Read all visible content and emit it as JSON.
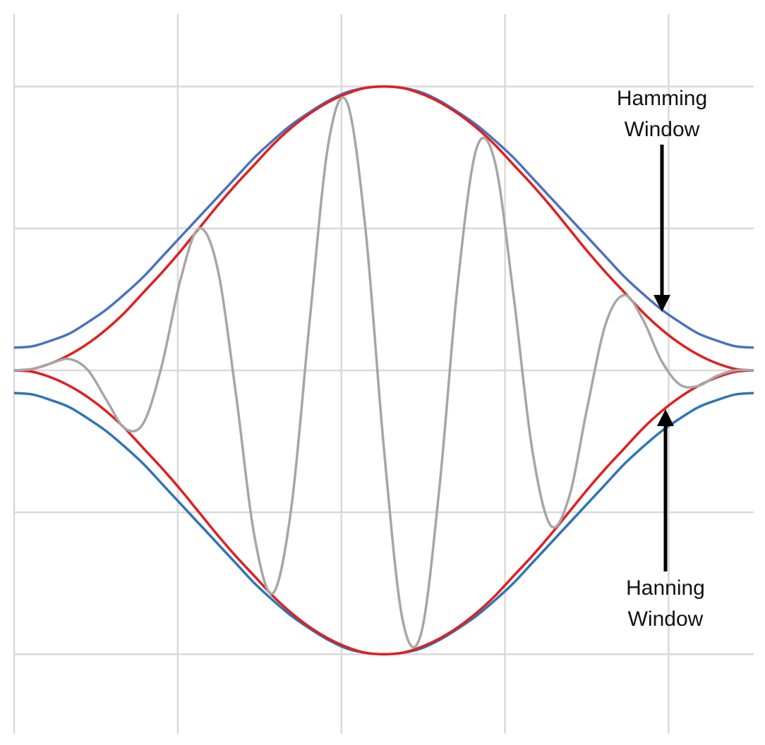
{
  "chart_data": {
    "type": "line",
    "xlim": [
      0,
      4.52
    ],
    "ylim": [
      -2.56,
      2.51
    ],
    "xticks": [
      0,
      1,
      2,
      3,
      4
    ],
    "yticks": [
      -2,
      -1,
      0,
      1,
      2
    ],
    "grid": true,
    "x": [
      0,
      0.113,
      0.226,
      0.339,
      0.452,
      0.565,
      0.678,
      0.791,
      0.904,
      1.017,
      1.13,
      1.243,
      1.356,
      1.469,
      1.582,
      1.695,
      1.808,
      1.921,
      2.034,
      2.147,
      2.26,
      2.373,
      2.486,
      2.599,
      2.712,
      2.825,
      2.938,
      3.051,
      3.164,
      3.277,
      3.39,
      3.503,
      3.616,
      3.729,
      3.842,
      3.955,
      4.068,
      4.181,
      4.294,
      4.407,
      4.52
    ],
    "series": [
      {
        "color": "#4a72c0",
        "values": [
          0.16,
          0.17,
          0.21,
          0.26,
          0.34,
          0.43,
          0.54,
          0.66,
          0.8,
          0.94,
          1.08,
          1.22,
          1.36,
          1.5,
          1.62,
          1.73,
          1.82,
          1.9,
          1.96,
          1.99,
          2,
          1.99,
          1.96,
          1.9,
          1.82,
          1.73,
          1.62,
          1.5,
          1.36,
          1.22,
          1.08,
          0.94,
          0.8,
          0.66,
          0.54,
          0.43,
          0.34,
          0.26,
          0.21,
          0.17,
          0.16
        ]
      },
      {
        "color": "#2e75b6",
        "values": [
          -0.16,
          -0.17,
          -0.21,
          -0.26,
          -0.34,
          -0.43,
          -0.54,
          -0.66,
          -0.8,
          -0.94,
          -1.08,
          -1.22,
          -1.36,
          -1.5,
          -1.62,
          -1.73,
          -1.82,
          -1.9,
          -1.96,
          -1.99,
          -2,
          -1.99,
          -1.96,
          -1.9,
          -1.82,
          -1.73,
          -1.62,
          -1.5,
          -1.36,
          -1.22,
          -1.08,
          -0.94,
          -0.8,
          -0.66,
          -0.54,
          -0.43,
          -0.34,
          -0.26,
          -0.21,
          -0.17,
          -0.16
        ]
      },
      {
        "color": "#e01f1f",
        "values": [
          0,
          0.01,
          0.05,
          0.11,
          0.19,
          0.29,
          0.41,
          0.55,
          0.69,
          0.84,
          1,
          1.16,
          1.31,
          1.45,
          1.59,
          1.71,
          1.81,
          1.89,
          1.95,
          1.99,
          2,
          1.99,
          1.95,
          1.89,
          1.81,
          1.71,
          1.59,
          1.45,
          1.31,
          1.16,
          1,
          0.84,
          0.69,
          0.55,
          0.41,
          0.29,
          0.19,
          0.11,
          0.05,
          0.01,
          0
        ]
      },
      {
        "color": "#e01f1f",
        "values": [
          0,
          -0.01,
          -0.05,
          -0.11,
          -0.19,
          -0.29,
          -0.41,
          -0.55,
          -0.69,
          -0.84,
          -1,
          -1.16,
          -1.31,
          -1.45,
          -1.59,
          -1.71,
          -1.81,
          -1.89,
          -1.95,
          -1.99,
          -2,
          -1.99,
          -1.95,
          -1.89,
          -1.81,
          -1.71,
          -1.59,
          -1.45,
          -1.31,
          -1.16,
          -1,
          -0.84,
          -0.69,
          -0.55,
          -0.41,
          -0.29,
          -0.19,
          -0.11,
          -0.05,
          -0.01,
          0
        ]
      },
      {
        "color": "#a6a6a6",
        "values": [
          0,
          0.01,
          0.05,
          0.08,
          0,
          -0.21,
          -0.41,
          -0.37,
          0.04,
          0.64,
          1,
          0.72,
          -0.17,
          -1.17,
          -1.57,
          -0.96,
          0.37,
          1.6,
          1.89,
          1,
          -0.55,
          -1.75,
          -1.86,
          -0.83,
          0.62,
          1.56,
          1.47,
          0.54,
          -0.54,
          -1.09,
          -0.9,
          -0.26,
          0.33,
          0.53,
          0.36,
          0.07,
          -0.1,
          -0.11,
          -0.04,
          0,
          0
        ]
      }
    ],
    "annotations": [
      "Hamming Window",
      "Hanning Window"
    ]
  }
}
